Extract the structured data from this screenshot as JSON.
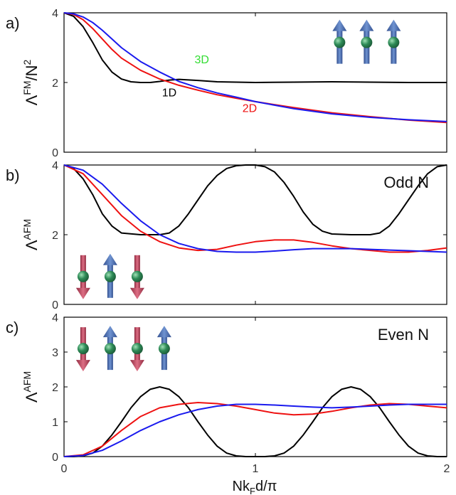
{
  "figure": {
    "xlabel": {
      "main": "Nk",
      "sub": "F",
      "rest": "d/π"
    }
  },
  "colors": {
    "1D": "#000000",
    "2D": "#ee1111",
    "3D": "#1a1aee",
    "label3D": "#33dd33",
    "spin_up": "#4a6fb5",
    "spin_down": "#c0405a",
    "atom": "#2e8b57"
  },
  "chart_data": [
    {
      "type": "line",
      "panel_label": "a)",
      "ylabel": {
        "base": "Λ",
        "sup": "FM",
        "rest": "/N",
        "sup2": "2"
      },
      "xlim": [
        0,
        2
      ],
      "ylim": [
        0,
        4
      ],
      "xticks": [
        0,
        1,
        2
      ],
      "yticks": [
        0,
        2,
        4
      ],
      "title": "",
      "annotations": [
        {
          "text": "1D",
          "color_key": "1D",
          "x": 0.55,
          "y": 1.6
        },
        {
          "text": "2D",
          "color_key": "2D",
          "x": 0.97,
          "y": 1.15
        },
        {
          "text": "3D",
          "color_key": "label3D",
          "x": 0.72,
          "y": 2.55
        }
      ],
      "spin_icons": [
        "up",
        "up",
        "up"
      ],
      "icon_anchor": {
        "x": 1.44,
        "y": 3.15
      },
      "series": [
        {
          "key": "1D",
          "x": [
            0,
            0.05,
            0.1,
            0.15,
            0.2,
            0.25,
            0.3,
            0.35,
            0.4,
            0.45,
            0.5,
            0.55,
            0.6,
            0.7,
            0.8,
            0.9,
            1.0,
            1.2,
            1.4,
            1.6,
            1.8,
            2.0
          ],
          "y": [
            4,
            3.9,
            3.6,
            3.15,
            2.65,
            2.3,
            2.1,
            2.02,
            2.0,
            2.0,
            2.03,
            2.07,
            2.09,
            2.06,
            2.02,
            2.01,
            2.0,
            2.01,
            2.02,
            2.01,
            2.0,
            2.0
          ]
        },
        {
          "key": "2D",
          "x": [
            0,
            0.05,
            0.1,
            0.15,
            0.2,
            0.25,
            0.3,
            0.4,
            0.5,
            0.6,
            0.7,
            0.8,
            0.9,
            1.0,
            1.2,
            1.4,
            1.6,
            1.8,
            2.0
          ],
          "y": [
            4,
            3.95,
            3.8,
            3.55,
            3.25,
            2.95,
            2.7,
            2.35,
            2.1,
            1.92,
            1.78,
            1.65,
            1.55,
            1.45,
            1.28,
            1.13,
            1.02,
            0.92,
            0.85
          ]
        },
        {
          "key": "3D",
          "x": [
            0,
            0.05,
            0.1,
            0.15,
            0.2,
            0.25,
            0.3,
            0.4,
            0.5,
            0.6,
            0.7,
            0.8,
            0.9,
            1.0,
            1.2,
            1.4,
            1.6,
            1.8,
            2.0
          ],
          "y": [
            4,
            3.97,
            3.88,
            3.72,
            3.5,
            3.25,
            3.0,
            2.6,
            2.3,
            2.03,
            1.85,
            1.7,
            1.58,
            1.45,
            1.25,
            1.1,
            1.0,
            0.93,
            0.88
          ]
        }
      ]
    },
    {
      "type": "line",
      "panel_label": "b)",
      "ylabel": {
        "base": "Λ",
        "sup": "AFM",
        "rest": "",
        "sup2": ""
      },
      "xlim": [
        0,
        2
      ],
      "ylim": [
        0,
        4
      ],
      "xticks": [
        0,
        1,
        2
      ],
      "yticks": [
        0,
        2,
        4
      ],
      "title": "Odd N",
      "annotations": [],
      "spin_icons": [
        "down",
        "up",
        "down"
      ],
      "icon_anchor": {
        "x": 0.1,
        "y": 0.8
      },
      "series": [
        {
          "key": "1D",
          "x": [
            0,
            0.05,
            0.1,
            0.15,
            0.2,
            0.25,
            0.3,
            0.4,
            0.5,
            0.55,
            0.6,
            0.65,
            0.7,
            0.75,
            0.8,
            0.85,
            0.9,
            0.95,
            1.0,
            1.05,
            1.1,
            1.15,
            1.2,
            1.25,
            1.3,
            1.35,
            1.4,
            1.5,
            1.6,
            1.65,
            1.7,
            1.75,
            1.8,
            1.85,
            1.9,
            1.95,
            2.0
          ],
          "y": [
            4,
            3.9,
            3.6,
            3.15,
            2.6,
            2.25,
            2.05,
            2.0,
            2.0,
            2.05,
            2.25,
            2.6,
            3.0,
            3.4,
            3.7,
            3.9,
            3.98,
            4.0,
            4.0,
            3.95,
            3.8,
            3.5,
            3.1,
            2.65,
            2.3,
            2.1,
            2.02,
            2.0,
            2.0,
            2.05,
            2.25,
            2.6,
            3.0,
            3.4,
            3.75,
            3.95,
            4.0
          ]
        },
        {
          "key": "2D",
          "x": [
            0,
            0.1,
            0.2,
            0.3,
            0.4,
            0.5,
            0.6,
            0.7,
            0.8,
            0.9,
            1.0,
            1.1,
            1.2,
            1.3,
            1.4,
            1.5,
            1.6,
            1.7,
            1.8,
            1.9,
            2.0
          ],
          "y": [
            4,
            3.75,
            3.15,
            2.55,
            2.1,
            1.8,
            1.62,
            1.55,
            1.58,
            1.7,
            1.8,
            1.85,
            1.85,
            1.78,
            1.68,
            1.6,
            1.55,
            1.5,
            1.5,
            1.55,
            1.62
          ]
        },
        {
          "key": "3D",
          "x": [
            0,
            0.1,
            0.2,
            0.3,
            0.4,
            0.5,
            0.6,
            0.7,
            0.8,
            0.9,
            1.0,
            1.1,
            1.2,
            1.3,
            1.4,
            1.5,
            1.6,
            1.7,
            1.8,
            1.9,
            2.0
          ],
          "y": [
            4,
            3.85,
            3.45,
            2.9,
            2.4,
            2.0,
            1.75,
            1.6,
            1.52,
            1.5,
            1.5,
            1.53,
            1.57,
            1.6,
            1.6,
            1.6,
            1.58,
            1.56,
            1.54,
            1.52,
            1.5
          ]
        }
      ]
    },
    {
      "type": "line",
      "panel_label": "c)",
      "ylabel": {
        "base": "Λ",
        "sup": "AFM",
        "rest": "",
        "sup2": ""
      },
      "xlim": [
        0,
        2
      ],
      "ylim": [
        0,
        4
      ],
      "xticks": [
        0,
        1,
        2
      ],
      "yticks": [
        0,
        1,
        2,
        3,
        4
      ],
      "title": "Even N",
      "annotations": [],
      "spin_icons": [
        "down",
        "up",
        "down",
        "up"
      ],
      "icon_anchor": {
        "x": 0.1,
        "y": 3.1
      },
      "series": [
        {
          "key": "1D",
          "x": [
            0,
            0.05,
            0.1,
            0.15,
            0.2,
            0.25,
            0.3,
            0.35,
            0.4,
            0.45,
            0.5,
            0.55,
            0.6,
            0.65,
            0.7,
            0.75,
            0.8,
            0.85,
            0.9,
            0.95,
            1.0,
            1.05,
            1.1,
            1.15,
            1.2,
            1.25,
            1.3,
            1.35,
            1.4,
            1.45,
            1.5,
            1.55,
            1.6,
            1.65,
            1.7,
            1.75,
            1.8,
            1.85,
            1.9,
            1.95,
            2.0
          ],
          "y": [
            0,
            0.0,
            0.02,
            0.1,
            0.3,
            0.62,
            1.0,
            1.4,
            1.72,
            1.93,
            2.0,
            1.93,
            1.72,
            1.4,
            1.0,
            0.62,
            0.3,
            0.1,
            0.02,
            0.0,
            0.0,
            0.0,
            0.02,
            0.1,
            0.3,
            0.62,
            1.0,
            1.4,
            1.72,
            1.93,
            2.0,
            1.93,
            1.72,
            1.4,
            1.0,
            0.62,
            0.3,
            0.1,
            0.02,
            0.0,
            0.0
          ]
        },
        {
          "key": "2D",
          "x": [
            0,
            0.1,
            0.2,
            0.3,
            0.4,
            0.5,
            0.6,
            0.7,
            0.8,
            0.9,
            1.0,
            1.1,
            1.2,
            1.3,
            1.4,
            1.5,
            1.6,
            1.7,
            1.8,
            1.9,
            2.0
          ],
          "y": [
            0,
            0.05,
            0.3,
            0.75,
            1.15,
            1.4,
            1.5,
            1.55,
            1.52,
            1.45,
            1.35,
            1.25,
            1.2,
            1.22,
            1.3,
            1.4,
            1.48,
            1.52,
            1.5,
            1.45,
            1.4
          ]
        },
        {
          "key": "3D",
          "x": [
            0,
            0.1,
            0.2,
            0.3,
            0.4,
            0.5,
            0.6,
            0.7,
            0.8,
            0.9,
            1.0,
            1.1,
            1.2,
            1.3,
            1.4,
            1.5,
            1.6,
            1.7,
            1.8,
            1.9,
            2.0
          ],
          "y": [
            0,
            0.03,
            0.18,
            0.45,
            0.75,
            1.0,
            1.2,
            1.35,
            1.45,
            1.5,
            1.5,
            1.48,
            1.45,
            1.42,
            1.4,
            1.42,
            1.45,
            1.48,
            1.5,
            1.5,
            1.5
          ]
        }
      ]
    }
  ]
}
